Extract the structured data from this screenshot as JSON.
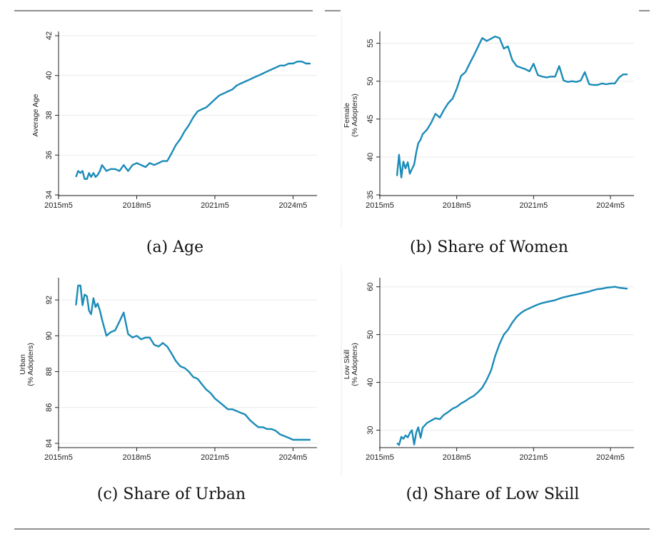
{
  "figure": {
    "captions": [
      "(a) Age",
      "(b) Share of Women",
      "(c) Share of Urban",
      "(d) Share of Low Skill"
    ]
  },
  "chart_data": [
    {
      "type": "line",
      "ylabel_lines": [
        "Average Age"
      ],
      "ylim": [
        34,
        42
      ],
      "yticks": [
        34,
        36,
        38,
        40,
        42
      ],
      "xticks": [
        "2015m5",
        "2018m5",
        "2021m5",
        "2024m5"
      ],
      "xlim": [
        2015.33,
        2025.25
      ],
      "grid": true,
      "line_color": "#1a8bb8",
      "series": [
        {
          "x": [
            2016.0,
            2016.08,
            2016.17,
            2016.25,
            2016.33,
            2016.42,
            2016.5,
            2016.58,
            2016.67,
            2016.75,
            2016.83,
            2016.92,
            2017.0,
            2017.17,
            2017.33,
            2017.5,
            2017.67,
            2017.83,
            2018.0,
            2018.17,
            2018.33,
            2018.5,
            2018.67,
            2018.83,
            2019.0,
            2019.17,
            2019.33,
            2019.5,
            2019.67,
            2019.83,
            2020.0,
            2020.17,
            2020.33,
            2020.5,
            2020.67,
            2020.83,
            2021.0,
            2021.17,
            2021.33,
            2021.5,
            2021.67,
            2021.83,
            2022.0,
            2022.17,
            2022.33,
            2022.5,
            2022.67,
            2022.83,
            2023.0,
            2023.17,
            2023.33,
            2023.5,
            2023.67,
            2023.83,
            2024.0,
            2024.17,
            2024.33,
            2024.5,
            2024.67,
            2024.83,
            2025.0
          ],
          "y": [
            34.9,
            35.2,
            35.1,
            35.2,
            34.8,
            34.8,
            35.1,
            34.9,
            35.1,
            34.9,
            35.0,
            35.2,
            35.5,
            35.2,
            35.3,
            35.3,
            35.2,
            35.5,
            35.2,
            35.5,
            35.6,
            35.5,
            35.4,
            35.6,
            35.5,
            35.6,
            35.7,
            35.7,
            36.1,
            36.5,
            36.8,
            37.2,
            37.5,
            37.9,
            38.2,
            38.3,
            38.4,
            38.6,
            38.8,
            39.0,
            39.1,
            39.2,
            39.3,
            39.5,
            39.6,
            39.7,
            39.8,
            39.9,
            40.0,
            40.1,
            40.2,
            40.3,
            40.4,
            40.5,
            40.5,
            40.6,
            40.6,
            40.7,
            40.7,
            40.6,
            40.6
          ]
        }
      ]
    },
    {
      "type": "line",
      "ylabel_lines": [
        "Female",
        "(% Adopters)"
      ],
      "ylim": [
        35,
        56
      ],
      "yticks": [
        35,
        40,
        45,
        50,
        55
      ],
      "xticks": [
        "2015m5",
        "2018m5",
        "2021m5",
        "2024m5"
      ],
      "xlim": [
        2015.33,
        2025.25
      ],
      "grid": true,
      "line_color": "#1a8bb8",
      "series": [
        {
          "x": [
            2016.0,
            2016.08,
            2016.17,
            2016.25,
            2016.33,
            2016.42,
            2016.5,
            2016.58,
            2016.67,
            2016.75,
            2016.83,
            2016.92,
            2017.0,
            2017.17,
            2017.33,
            2017.5,
            2017.67,
            2017.83,
            2018.0,
            2018.17,
            2018.33,
            2018.5,
            2018.67,
            2018.83,
            2019.0,
            2019.17,
            2019.33,
            2019.5,
            2019.67,
            2019.83,
            2020.0,
            2020.17,
            2020.33,
            2020.5,
            2020.67,
            2020.83,
            2021.0,
            2021.17,
            2021.33,
            2021.5,
            2021.67,
            2021.83,
            2022.0,
            2022.17,
            2022.33,
            2022.5,
            2022.67,
            2022.83,
            2023.0,
            2023.17,
            2023.33,
            2023.5,
            2023.67,
            2023.83,
            2024.0,
            2024.17,
            2024.33,
            2024.5,
            2024.67,
            2024.83,
            2025.0
          ],
          "y": [
            37.5,
            40.3,
            37.3,
            39.4,
            38.5,
            39.3,
            37.8,
            38.4,
            39.0,
            40.6,
            41.8,
            42.3,
            43.0,
            43.6,
            44.5,
            45.7,
            45.2,
            46.2,
            47.1,
            47.7,
            49.0,
            50.7,
            51.2,
            52.3,
            53.4,
            54.6,
            55.7,
            55.3,
            55.6,
            55.9,
            55.7,
            54.3,
            54.6,
            52.8,
            52.0,
            51.8,
            51.6,
            51.3,
            52.3,
            50.8,
            50.6,
            50.5,
            50.6,
            50.6,
            52.0,
            50.1,
            49.9,
            50.0,
            49.9,
            50.1,
            51.2,
            49.6,
            49.5,
            49.5,
            49.7,
            49.6,
            49.7,
            49.7,
            50.5,
            50.9,
            50.9
          ]
        }
      ]
    },
    {
      "type": "line",
      "ylabel_lines": [
        "Urban",
        "(% Adopters)"
      ],
      "ylim": [
        83.8,
        93.0
      ],
      "yticks": [
        84,
        86,
        88,
        90,
        92
      ],
      "xticks": [
        "2015m5",
        "2018m5",
        "2021m5",
        "2024m5"
      ],
      "xlim": [
        2015.33,
        2025.25
      ],
      "grid": true,
      "line_color": "#1a8bb8",
      "series": [
        {
          "x": [
            2016.0,
            2016.08,
            2016.17,
            2016.25,
            2016.33,
            2016.42,
            2016.5,
            2016.58,
            2016.67,
            2016.75,
            2016.83,
            2016.92,
            2017.0,
            2017.17,
            2017.33,
            2017.5,
            2017.67,
            2017.83,
            2018.0,
            2018.17,
            2018.33,
            2018.5,
            2018.67,
            2018.83,
            2019.0,
            2019.17,
            2019.33,
            2019.5,
            2019.67,
            2019.83,
            2020.0,
            2020.17,
            2020.33,
            2020.5,
            2020.67,
            2020.83,
            2021.0,
            2021.17,
            2021.33,
            2021.5,
            2021.67,
            2021.83,
            2022.0,
            2022.17,
            2022.33,
            2022.5,
            2022.67,
            2022.83,
            2023.0,
            2023.17,
            2023.33,
            2023.5,
            2023.67,
            2023.83,
            2024.0,
            2024.17,
            2024.33,
            2024.5,
            2024.67,
            2024.83,
            2025.0
          ],
          "y": [
            91.7,
            92.8,
            92.8,
            91.7,
            92.3,
            92.2,
            91.4,
            91.2,
            92.1,
            91.6,
            91.8,
            91.4,
            90.9,
            90.0,
            90.2,
            90.3,
            90.8,
            91.3,
            90.1,
            89.9,
            90.0,
            89.8,
            89.9,
            89.9,
            89.5,
            89.4,
            89.6,
            89.4,
            89.0,
            88.6,
            88.3,
            88.2,
            88.0,
            87.7,
            87.6,
            87.3,
            87.0,
            86.8,
            86.5,
            86.3,
            86.1,
            85.9,
            85.9,
            85.8,
            85.7,
            85.6,
            85.3,
            85.1,
            84.9,
            84.9,
            84.8,
            84.8,
            84.7,
            84.5,
            84.4,
            84.3,
            84.2,
            84.2,
            84.2,
            84.2,
            84.2
          ]
        }
      ]
    },
    {
      "type": "line",
      "ylabel_lines": [
        "Low Skill",
        "(% Adopters)"
      ],
      "ylim": [
        26.5,
        61
      ],
      "yticks": [
        30,
        40,
        50,
        60
      ],
      "xticks": [
        "2015m5",
        "2018m5",
        "2021m5",
        "2024m5"
      ],
      "xlim": [
        2015.33,
        2025.25
      ],
      "grid": true,
      "line_color": "#1a8bb8",
      "series": [
        {
          "x": [
            2016.0,
            2016.08,
            2016.17,
            2016.25,
            2016.33,
            2016.42,
            2016.5,
            2016.58,
            2016.67,
            2016.75,
            2016.83,
            2016.92,
            2017.0,
            2017.17,
            2017.33,
            2017.5,
            2017.67,
            2017.83,
            2018.0,
            2018.17,
            2018.33,
            2018.5,
            2018.67,
            2018.83,
            2019.0,
            2019.17,
            2019.33,
            2019.5,
            2019.67,
            2019.83,
            2020.0,
            2020.17,
            2020.33,
            2020.5,
            2020.67,
            2020.83,
            2021.0,
            2021.17,
            2021.33,
            2021.5,
            2021.67,
            2021.83,
            2022.0,
            2022.17,
            2022.33,
            2022.5,
            2022.67,
            2022.83,
            2023.0,
            2023.17,
            2023.33,
            2023.5,
            2023.67,
            2023.83,
            2024.0,
            2024.17,
            2024.33,
            2024.5,
            2024.67,
            2024.83,
            2025.0
          ],
          "y": [
            27.3,
            26.9,
            28.6,
            28.2,
            28.9,
            28.5,
            29.4,
            30.0,
            27.0,
            29.5,
            30.6,
            28.4,
            30.5,
            31.5,
            32.0,
            32.5,
            32.3,
            33.2,
            33.8,
            34.5,
            34.9,
            35.6,
            36.1,
            36.7,
            37.2,
            38.0,
            38.9,
            40.5,
            42.5,
            45.5,
            48.0,
            50.0,
            51.0,
            52.5,
            53.7,
            54.5,
            55.1,
            55.5,
            55.9,
            56.3,
            56.6,
            56.8,
            57.0,
            57.2,
            57.5,
            57.8,
            58.0,
            58.2,
            58.4,
            58.6,
            58.8,
            59.0,
            59.3,
            59.5,
            59.6,
            59.8,
            59.9,
            60.0,
            59.8,
            59.7,
            59.6
          ]
        }
      ]
    }
  ]
}
